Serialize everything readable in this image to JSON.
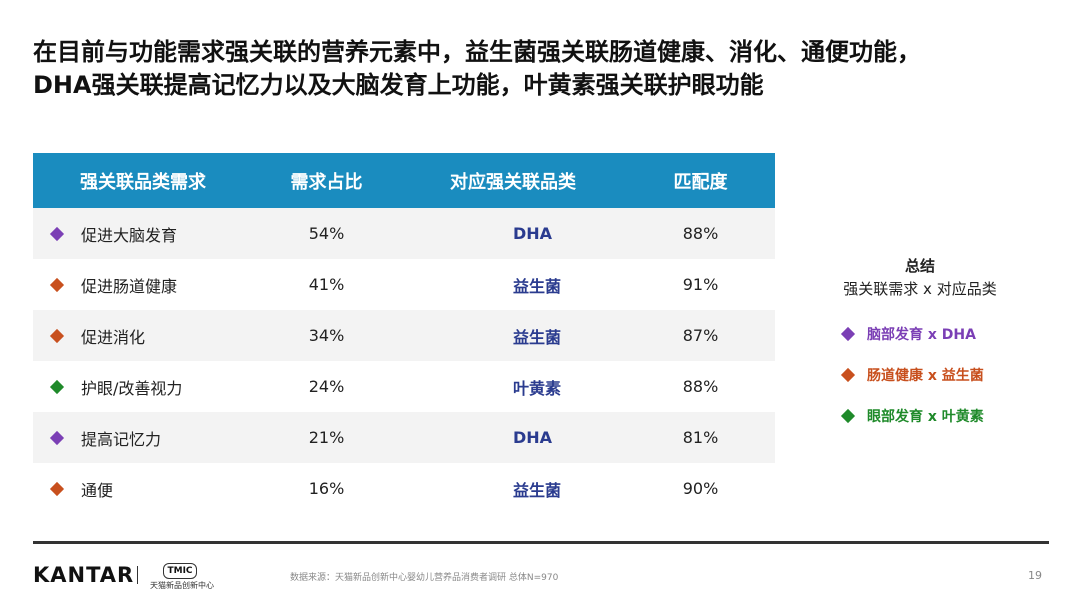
{
  "title": {
    "line1": "在目前与功能需求强关联的营养元素中，益生菌强关联肠道健康、消化、通便功能，",
    "line2": "DHA强关联提高记忆力以及大脑发育上功能，叶黄素强关联护眼功能"
  },
  "table": {
    "headers": [
      "强关联品类需求",
      "需求占比",
      "对应强关联品类",
      "匹配度"
    ],
    "rows": [
      {
        "need": "促进大脑发育",
        "share": "54%",
        "product": "DHA",
        "match": "88%",
        "color": "#7b3fb5"
      },
      {
        "need": "促进肠道健康",
        "share": "41%",
        "product": "益生菌",
        "match": "91%",
        "color": "#c8501e"
      },
      {
        "need": "促进消化",
        "share": "34%",
        "product": "益生菌",
        "match": "87%",
        "color": "#c8501e"
      },
      {
        "need": "护眼/改善视力",
        "share": "24%",
        "product": "叶黄素",
        "match": "88%",
        "color": "#1f8a2a"
      },
      {
        "need": "提高记忆力",
        "share": "21%",
        "product": "DHA",
        "match": "81%",
        "color": "#7b3fb5"
      },
      {
        "need": "通便",
        "share": "16%",
        "product": "益生菌",
        "match": "90%",
        "color": "#c8501e"
      }
    ]
  },
  "summary": {
    "title": "总结",
    "subtitle": "强关联需求 x 对应品类",
    "pairs": [
      {
        "text": "脑部发育 x DHA",
        "color": "#7b3fb5"
      },
      {
        "text": "肠道健康 x 益生菌",
        "color": "#c8501e"
      },
      {
        "text": "眼部发育 x 叶黄素",
        "color": "#1f8a2a"
      }
    ]
  },
  "footer": {
    "logo": "KANTAR",
    "tmic_badge": "TMIC",
    "tmic_sub": "天猫新品创新中心",
    "source": "数据来源：天猫新品创新中心婴幼儿营养品消费者调研 总体N=970",
    "page": "19"
  }
}
